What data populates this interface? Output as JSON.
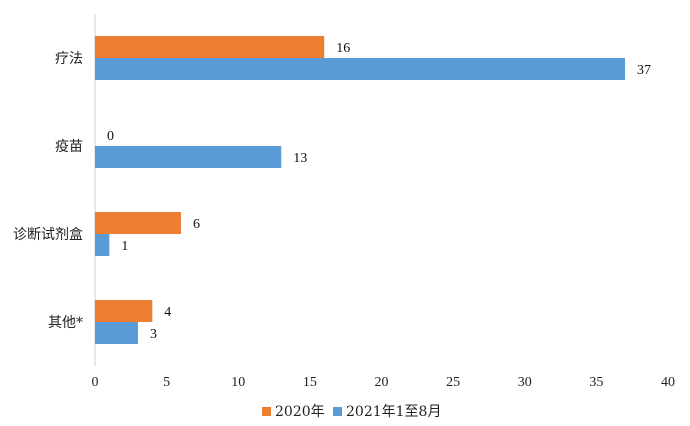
{
  "chart_data": {
    "type": "bar",
    "orientation": "horizontal",
    "categories": [
      "疗法",
      "疫苗",
      "诊断试剂盒",
      "其他*"
    ],
    "series": [
      {
        "name": "2020年",
        "color": "#ED7D31",
        "values": [
          16,
          0,
          6,
          4
        ]
      },
      {
        "name": "2021年1至8月",
        "color": "#5B9BD5",
        "values": [
          37,
          13,
          1,
          3
        ]
      }
    ],
    "xlim": [
      0,
      40
    ],
    "xticks": [
      "0",
      "5",
      "10",
      "15",
      "20",
      "25",
      "30",
      "35",
      "40"
    ],
    "grid": false,
    "legend_position": "bottom"
  }
}
